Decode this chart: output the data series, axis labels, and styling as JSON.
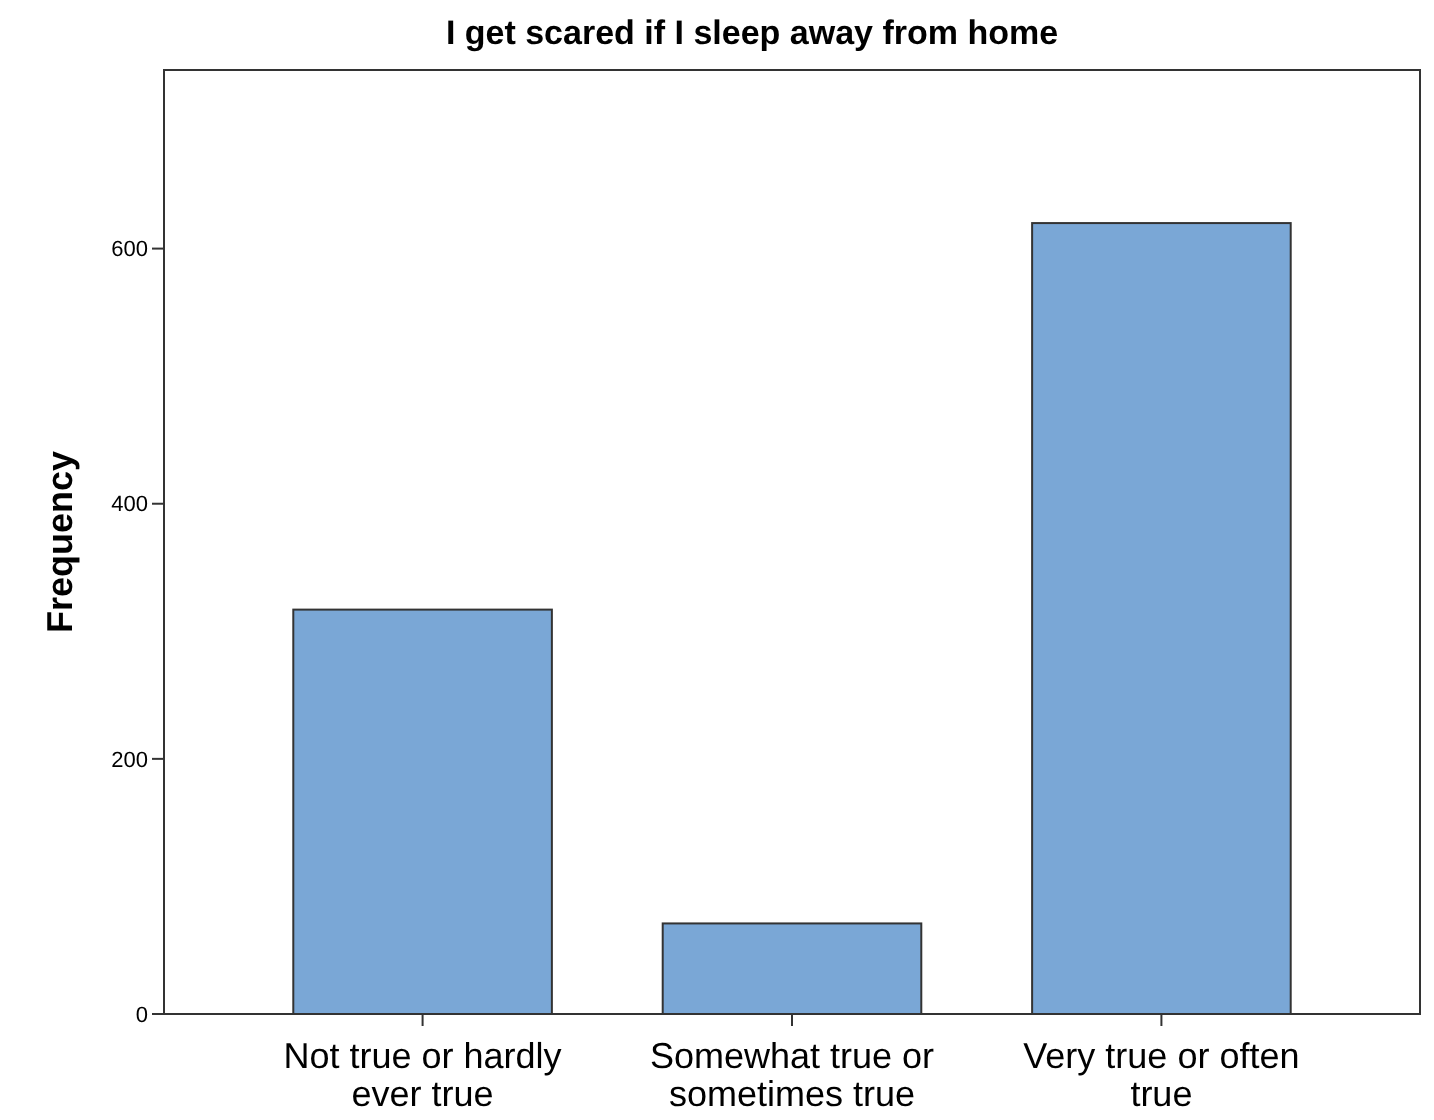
{
  "chart_data": {
    "type": "bar",
    "title": "I get scared if I sleep away from home",
    "ylabel": "Frequency",
    "categories": [
      "Not true or hardly ever true",
      "Somewhat true or sometimes true",
      "Very true or often true"
    ],
    "values": [
      317,
      71,
      620
    ],
    "color": "#7aa7d6",
    "ylim": [
      0,
      740
    ],
    "yticks": [
      0,
      200,
      400,
      600
    ],
    "grid": false
  }
}
